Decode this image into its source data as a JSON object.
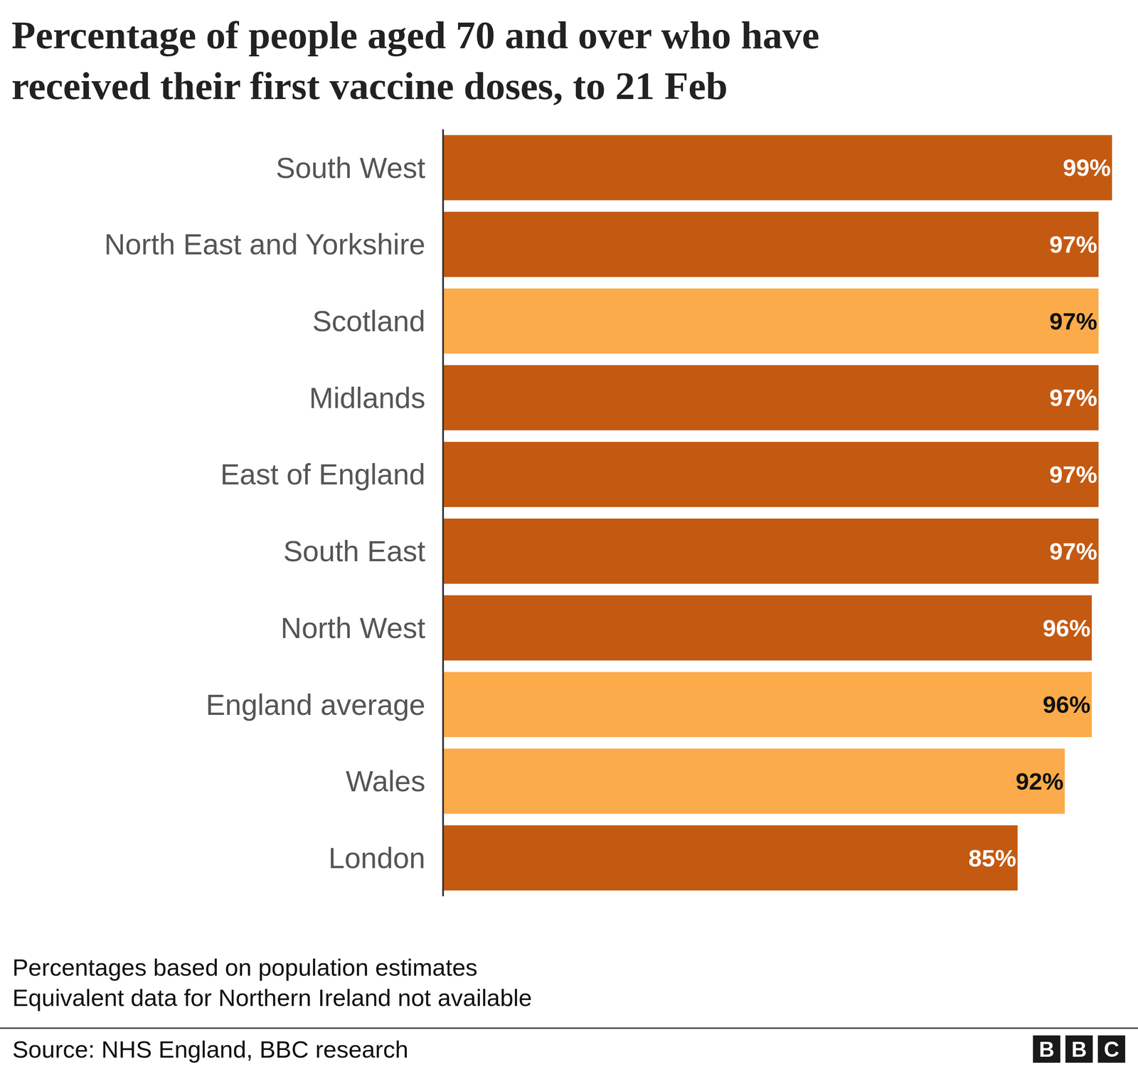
{
  "chart_data": {
    "type": "bar",
    "orientation": "horizontal",
    "title": "Percentage of people aged 70 and over who have received their first vaccine doses, to 21 Feb",
    "categories": [
      "South West",
      "North East and Yorkshire",
      "Scotland",
      "Midlands",
      "East of England",
      "South East",
      "North West",
      "England average",
      "Wales",
      "London"
    ],
    "values": [
      99,
      97,
      97,
      97,
      97,
      97,
      96,
      96,
      92,
      85
    ],
    "value_labels": [
      "99%",
      "97%",
      "97%",
      "97%",
      "97%",
      "97%",
      "96%",
      "96%",
      "92%",
      "85%"
    ],
    "colors": [
      "#c45a11",
      "#c45a11",
      "#fbab4a",
      "#c45a11",
      "#c45a11",
      "#c45a11",
      "#c45a11",
      "#fbab4a",
      "#fbab4a",
      "#c45a11"
    ],
    "data_labels": true,
    "tick_labels": "y",
    "grid": false,
    "xlim": [
      0,
      100
    ],
    "footnotes": [
      "Percentages based on population estimates",
      "Equivalent data for Northern Ireland not available"
    ],
    "source": "Source: NHS England, BBC research",
    "logo": "BBC"
  }
}
